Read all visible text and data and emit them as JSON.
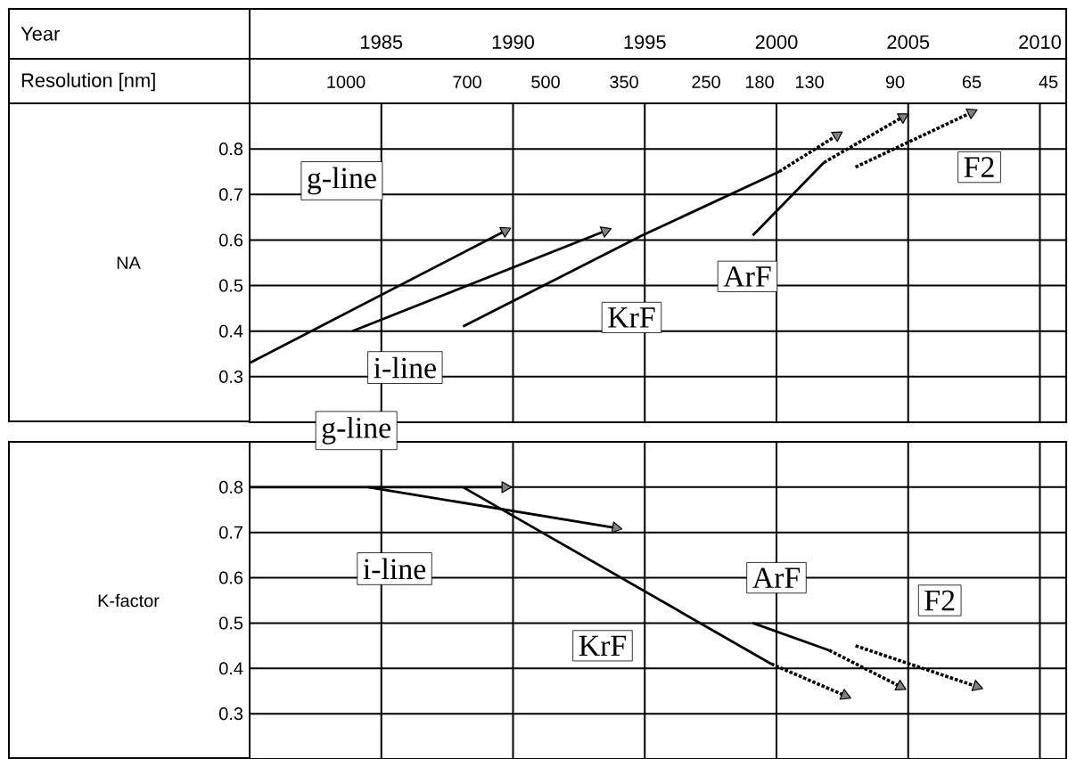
{
  "chart_data": [
    {
      "type": "line",
      "ylabel": "NA",
      "annotations": [
        "Year",
        "Resolution [nm]",
        "1000",
        "700",
        "500",
        "350",
        "250",
        "180",
        "130",
        "90",
        "65",
        "45"
      ],
      "xlim": [
        1980,
        2011
      ],
      "xticks": [
        1985,
        1990,
        1995,
        2000,
        2005,
        2010
      ],
      "ylim": [
        0.2,
        0.9
      ],
      "yticks": [
        0.3,
        0.4,
        0.5,
        0.6,
        0.7,
        0.8
      ],
      "grid": true,
      "series": [
        {
          "name": "g-line",
          "color": "#000000",
          "marker": "triangle",
          "x": [
            1980,
            1989.7
          ],
          "values": [
            0.33,
            0.62
          ]
        },
        {
          "name": "i-line",
          "color": "#000000",
          "marker": "triangle",
          "x": [
            1983.9,
            1993.5
          ],
          "values": [
            0.4,
            0.62
          ]
        },
        {
          "name": "KrF",
          "color": "#000000",
          "x": [
            1988.1,
            1994.9,
            2000.1
          ],
          "values": [
            0.41,
            0.61,
            0.75
          ]
        },
        {
          "color": "#000000",
          "line_style": "dotted",
          "marker": "triangle",
          "x": [
            2000.1,
            2002.3
          ],
          "values": [
            0.75,
            0.83
          ]
        },
        {
          "name": "ArF",
          "color": "#000000",
          "x": [
            1999.1,
            2001.8
          ],
          "values": [
            0.61,
            0.77
          ]
        },
        {
          "color": "#000000",
          "line_style": "dotted",
          "marker": "triangle",
          "x": [
            2001.8,
            2004.8
          ],
          "values": [
            0.77,
            0.87
          ]
        },
        {
          "name": "F2",
          "color": "#000000",
          "line_style": "dotted",
          "marker": "triangle",
          "x": [
            2003,
            2007.4
          ],
          "values": [
            0.76,
            0.88
          ]
        }
      ]
    },
    {
      "type": "line",
      "ylabel": "K-factor",
      "tick_labels": "y",
      "xlim": [
        1980,
        2011
      ],
      "xticks": [
        1985,
        1990,
        1995,
        2000,
        2005,
        2010
      ],
      "ylim": [
        0.2,
        0.9
      ],
      "yticks": [
        0.3,
        0.4,
        0.5,
        0.6,
        0.7,
        0.8
      ],
      "grid": true,
      "series": [
        {
          "name": "g-line",
          "color": "#000000",
          "marker": "triangle",
          "x": [
            1980,
            1989.7
          ],
          "values": [
            0.8,
            0.8
          ]
        },
        {
          "name": "i-line",
          "color": "#000000",
          "marker": "triangle",
          "x": [
            1984.5,
            1993.9
          ],
          "values": [
            0.8,
            0.71
          ]
        },
        {
          "name": "KrF",
          "color": "#000000",
          "x": [
            1988.1,
            1999.8
          ],
          "values": [
            0.8,
            0.41
          ]
        },
        {
          "color": "#000000",
          "line_style": "dotted",
          "marker": "triangle",
          "x": [
            1999.8,
            2002.6
          ],
          "values": [
            0.41,
            0.34
          ]
        },
        {
          "name": "ArF",
          "color": "#000000",
          "x": [
            1999.1,
            2002
          ],
          "values": [
            0.5,
            0.44
          ]
        },
        {
          "color": "#000000",
          "line_style": "dotted",
          "marker": "triangle",
          "x": [
            2002,
            2004.7
          ],
          "values": [
            0.44,
            0.36
          ]
        },
        {
          "name": "F2",
          "color": "#000000",
          "line_style": "dotted",
          "marker": "triangle",
          "x": [
            2003,
            2007.6
          ],
          "values": [
            0.45,
            0.36
          ]
        }
      ]
    }
  ]
}
